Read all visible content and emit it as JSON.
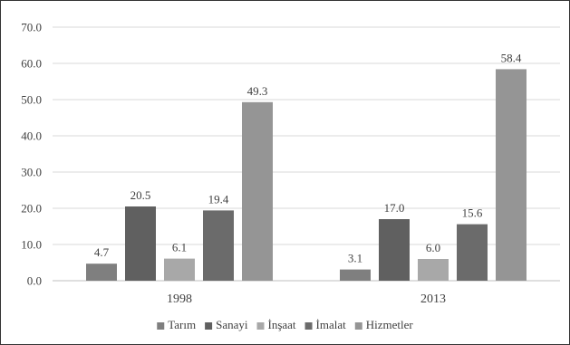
{
  "chart_data": {
    "type": "bar",
    "categories": [
      "1998",
      "2013"
    ],
    "series": [
      {
        "name": "Tarım",
        "values": [
          4.7,
          3.1
        ],
        "labels": [
          "4.7",
          "3.1"
        ],
        "color": "#7f7f7f"
      },
      {
        "name": "Sanayi",
        "values": [
          20.5,
          17.0
        ],
        "labels": [
          "20.5",
          "17.0"
        ],
        "color": "#606060"
      },
      {
        "name": "İnşaat",
        "values": [
          6.1,
          6.0
        ],
        "labels": [
          "6.1",
          "6.0"
        ],
        "color": "#a8a8a8"
      },
      {
        "name": "İmalat",
        "values": [
          19.4,
          15.6
        ],
        "labels": [
          "19.4",
          "15.6"
        ],
        "color": "#6b6b6b"
      },
      {
        "name": "Hizmetler",
        "values": [
          49.3,
          58.4
        ],
        "labels": [
          "49.3",
          "58.4"
        ],
        "color": "#959595"
      }
    ],
    "yticks": [
      "0.0",
      "10.0",
      "20.0",
      "30.0",
      "40.0",
      "50.0",
      "60.0",
      "70.0"
    ],
    "ylim": [
      0,
      70
    ],
    "grid": true,
    "legend": "bottom",
    "title": "",
    "xlabel": "",
    "ylabel": ""
  }
}
